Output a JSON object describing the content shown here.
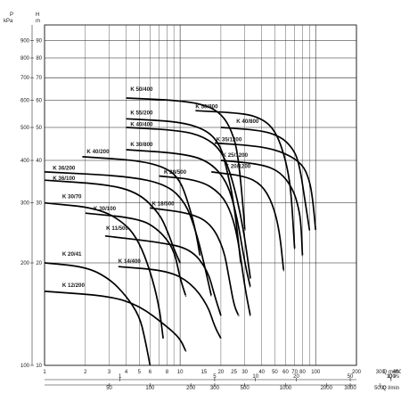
{
  "chart_data": {
    "type": "line",
    "title": "",
    "x_scale": "log",
    "y_scale": "log",
    "xlim": [
      1,
      200
    ],
    "ylim": [
      10,
      100
    ],
    "grid": true,
    "legend": "none",
    "left_axis": {
      "pressure_label": "P",
      "pressure_unit": "kPa",
      "head_label": "H",
      "head_unit": "m",
      "head_ticks": [
        "10",
        "20",
        "30",
        "40",
        "50",
        "60",
        "70",
        "80",
        "90"
      ],
      "pressure_ticks": [
        "100",
        "200",
        "300",
        "400",
        "500",
        "600",
        "700",
        "800",
        "900"
      ],
      "head_tick_values": [
        10,
        20,
        30,
        40,
        50,
        60,
        70,
        80,
        90
      ],
      "pressure_tick_values": [
        10,
        20,
        30,
        40,
        50,
        60,
        70,
        80,
        90
      ]
    },
    "x_axes": [
      {
        "unit": "Q m³/h",
        "ticks": [
          "1",
          "2",
          "3",
          "4",
          "5",
          "6",
          "8",
          "10",
          "15",
          "20",
          "25",
          "30",
          "40",
          "50",
          "60",
          "70",
          "80",
          "100",
          "200",
          "300",
          "400"
        ],
        "tick_values": [
          1,
          2,
          3,
          4,
          5,
          6,
          8,
          10,
          15,
          20,
          25,
          30,
          40,
          50,
          60,
          70,
          80,
          100,
          200,
          300,
          400
        ]
      },
      {
        "unit": "Q l/s",
        "ticks": [
          "1",
          "5",
          "10",
          "20",
          "50",
          "100"
        ],
        "tick_values": [
          3.6,
          18,
          36,
          72,
          180,
          360
        ]
      },
      {
        "unit": "Q l/min",
        "ticks": [
          "50",
          "100",
          "200",
          "300",
          "500",
          "1000",
          "2000",
          "3000",
          "5000"
        ],
        "tick_values": [
          3,
          6,
          12,
          18,
          30,
          60,
          120,
          180,
          300
        ]
      }
    ],
    "series": [
      {
        "name": "K 50/400",
        "label_at": [
          4.3,
          64
        ],
        "points": [
          [
            4,
            61
          ],
          [
            10,
            60
          ],
          [
            16,
            58
          ],
          [
            21,
            54
          ],
          [
            25,
            47
          ],
          [
            27,
            40
          ],
          [
            29,
            30
          ],
          [
            30,
            25
          ]
        ]
      },
      {
        "name": "K 50/800",
        "label_at": [
          13,
          57
        ],
        "points": [
          [
            13,
            56
          ],
          [
            30,
            55
          ],
          [
            40,
            53
          ],
          [
            48,
            50
          ],
          [
            55,
            45
          ],
          [
            62,
            38
          ],
          [
            66,
            32
          ],
          [
            70,
            22
          ]
        ]
      },
      {
        "name": "K 55/200",
        "label_at": [
          4.3,
          54.5
        ],
        "points": [
          [
            4,
            53
          ],
          [
            10,
            52
          ],
          [
            16,
            49
          ],
          [
            20,
            44
          ],
          [
            22,
            38
          ],
          [
            25,
            30
          ],
          [
            28,
            20
          ]
        ]
      },
      {
        "name": "K 40/800",
        "label_at": [
          26,
          51.5
        ],
        "points": [
          [
            20,
            50
          ],
          [
            40,
            49
          ],
          [
            55,
            47
          ],
          [
            66,
            44
          ],
          [
            75,
            40
          ],
          [
            84,
            30
          ],
          [
            90,
            25
          ]
        ]
      },
      {
        "name": "K 40/400",
        "label_at": [
          4.3,
          50.5
        ],
        "points": [
          [
            4,
            50
          ],
          [
            10,
            49
          ],
          [
            15,
            47
          ],
          [
            20,
            43
          ],
          [
            24,
            36
          ],
          [
            29,
            26
          ],
          [
            33,
            18
          ]
        ]
      },
      {
        "name": "K 35/1200",
        "label_at": [
          18.5,
          45.5
        ],
        "points": [
          [
            18,
            45
          ],
          [
            40,
            44
          ],
          [
            60,
            42
          ],
          [
            80,
            39
          ],
          [
            90,
            35
          ],
          [
            95,
            31
          ],
          [
            100,
            25
          ]
        ]
      },
      {
        "name": "K 30/800",
        "label_at": [
          4.3,
          44
        ],
        "points": [
          [
            4,
            43
          ],
          [
            10,
            42
          ],
          [
            16,
            40
          ],
          [
            22,
            35
          ],
          [
            26,
            28
          ],
          [
            30,
            20
          ],
          [
            33,
            17
          ]
        ]
      },
      {
        "name": "K 25/1200",
        "label_at": [
          20.5,
          41
        ],
        "points": [
          [
            20,
            40
          ],
          [
            40,
            39
          ],
          [
            55,
            37
          ],
          [
            68,
            33
          ],
          [
            75,
            29
          ],
          [
            78,
            26
          ],
          [
            80,
            21
          ]
        ]
      },
      {
        "name": "K 40/200",
        "label_at": [
          2.05,
          42
        ],
        "points": [
          [
            1.9,
            41
          ],
          [
            5,
            40
          ],
          [
            8,
            38
          ],
          [
            10,
            35
          ],
          [
            11.5,
            30
          ],
          [
            13,
            25
          ],
          [
            14,
            21
          ]
        ]
      },
      {
        "name": "K 20/1200",
        "label_at": [
          21.5,
          38
        ],
        "points": [
          [
            17,
            37
          ],
          [
            30,
            36
          ],
          [
            40,
            34
          ],
          [
            48,
            30
          ],
          [
            54,
            25
          ],
          [
            58,
            19
          ]
        ]
      },
      {
        "name": "K 36/200",
        "label_at": [
          1.15,
          37.5
        ],
        "points": [
          [
            1,
            37
          ],
          [
            4,
            36
          ],
          [
            8,
            34
          ],
          [
            11,
            30
          ],
          [
            13,
            25
          ],
          [
            15,
            20
          ],
          [
            17,
            16
          ]
        ]
      },
      {
        "name": "K 28/500",
        "label_at": [
          7.6,
          36.5
        ],
        "points": [
          [
            7,
            36
          ],
          [
            14,
            35
          ],
          [
            20,
            32
          ],
          [
            24,
            28
          ],
          [
            27,
            23
          ],
          [
            30,
            17
          ],
          [
            33,
            14
          ]
        ]
      },
      {
        "name": "K 36/100",
        "label_at": [
          1.15,
          35
        ],
        "points": [
          [
            1,
            35
          ],
          [
            3,
            34
          ],
          [
            5,
            32
          ],
          [
            7,
            28
          ],
          [
            8,
            25
          ],
          [
            9,
            22
          ],
          [
            10,
            20
          ]
        ]
      },
      {
        "name": "K 30/70",
        "label_at": [
          1.35,
          31
        ],
        "points": [
          [
            1,
            30
          ],
          [
            2.5,
            29
          ],
          [
            4,
            26
          ],
          [
            5,
            23
          ],
          [
            6,
            19
          ],
          [
            7,
            15
          ],
          [
            7.5,
            12
          ]
        ]
      },
      {
        "name": "K 18/500",
        "label_at": [
          6.2,
          29.5
        ],
        "points": [
          [
            6,
            29
          ],
          [
            12,
            28
          ],
          [
            17,
            26
          ],
          [
            21,
            22
          ],
          [
            23,
            18
          ],
          [
            25,
            15
          ],
          [
            27,
            14
          ]
        ]
      },
      {
        "name": "K 30/100",
        "label_at": [
          2.3,
          28.5
        ],
        "points": [
          [
            2,
            28
          ],
          [
            5,
            27
          ],
          [
            7,
            25
          ],
          [
            9,
            22
          ],
          [
            10,
            18
          ],
          [
            11,
            16
          ]
        ]
      },
      {
        "name": "K 11/500",
        "label_at": [
          2.85,
          25
        ],
        "points": [
          [
            2.8,
            24
          ],
          [
            7,
            23
          ],
          [
            12,
            22
          ],
          [
            16,
            19
          ],
          [
            18,
            16
          ],
          [
            20,
            14
          ]
        ]
      },
      {
        "name": "K 20/41",
        "label_at": [
          1.35,
          21
        ],
        "points": [
          [
            1,
            20
          ],
          [
            2,
            19.5
          ],
          [
            3,
            18
          ],
          [
            4,
            16
          ],
          [
            5,
            14
          ],
          [
            5.5,
            12
          ],
          [
            6,
            10
          ]
        ]
      },
      {
        "name": "K 14/400",
        "label_at": [
          3.5,
          20
        ],
        "points": [
          [
            3.5,
            19.5
          ],
          [
            8,
            19
          ],
          [
            12,
            17.5
          ],
          [
            16,
            15
          ],
          [
            18,
            13
          ],
          [
            20,
            12
          ]
        ]
      },
      {
        "name": "K 12/200",
        "label_at": [
          1.35,
          17
        ],
        "points": [
          [
            1,
            16.5
          ],
          [
            3,
            16
          ],
          [
            5,
            15
          ],
          [
            8,
            13
          ],
          [
            10,
            12
          ],
          [
            11,
            11
          ]
        ]
      }
    ]
  }
}
